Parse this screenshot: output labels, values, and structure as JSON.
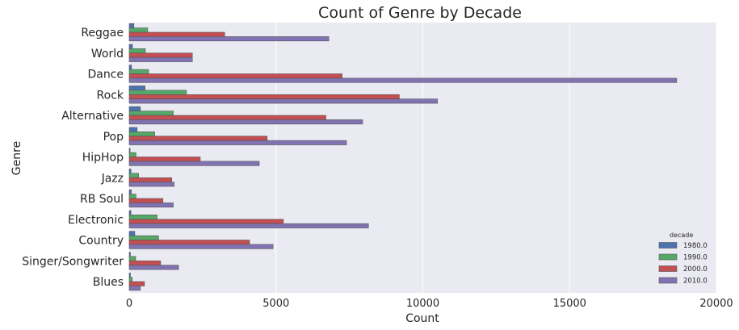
{
  "chart_data": {
    "type": "bar",
    "orientation": "horizontal",
    "title": "Count of Genre by Decade",
    "xlabel": "Count",
    "ylabel": "Genre",
    "xlim": [
      0,
      20000
    ],
    "xticks": [
      0,
      5000,
      10000,
      15000,
      20000
    ],
    "xtick_labels": [
      "0",
      "5000",
      "10000",
      "15000",
      "20000"
    ],
    "grid": true,
    "legend": {
      "title": "decade",
      "placement": "bottom-right"
    },
    "categories": [
      "Reggae",
      "World",
      "Dance",
      "Rock",
      "Alternative",
      "Pop",
      "HipHop",
      "Jazz",
      "RB Soul",
      "Electronic",
      "Country",
      "Singer/Songwriter",
      "Blues"
    ],
    "series": [
      {
        "name": "1980.0",
        "color": "#4c72b0",
        "values": [
          160,
          110,
          80,
          540,
          380,
          270,
          30,
          60,
          70,
          60,
          190,
          40,
          40
        ]
      },
      {
        "name": "1990.0",
        "color": "#55a868",
        "values": [
          630,
          550,
          660,
          1950,
          1500,
          870,
          230,
          320,
          230,
          950,
          1000,
          220,
          100
        ]
      },
      {
        "name": "2000.0",
        "color": "#c44e52",
        "values": [
          3250,
          2150,
          7250,
          9200,
          6700,
          4700,
          2420,
          1450,
          1150,
          5250,
          4100,
          1070,
          520
        ]
      },
      {
        "name": "2010.0",
        "color": "#8172b2",
        "values": [
          6800,
          2150,
          18650,
          10500,
          7950,
          7400,
          4430,
          1530,
          1500,
          8150,
          4900,
          1680,
          380
        ]
      }
    ]
  }
}
